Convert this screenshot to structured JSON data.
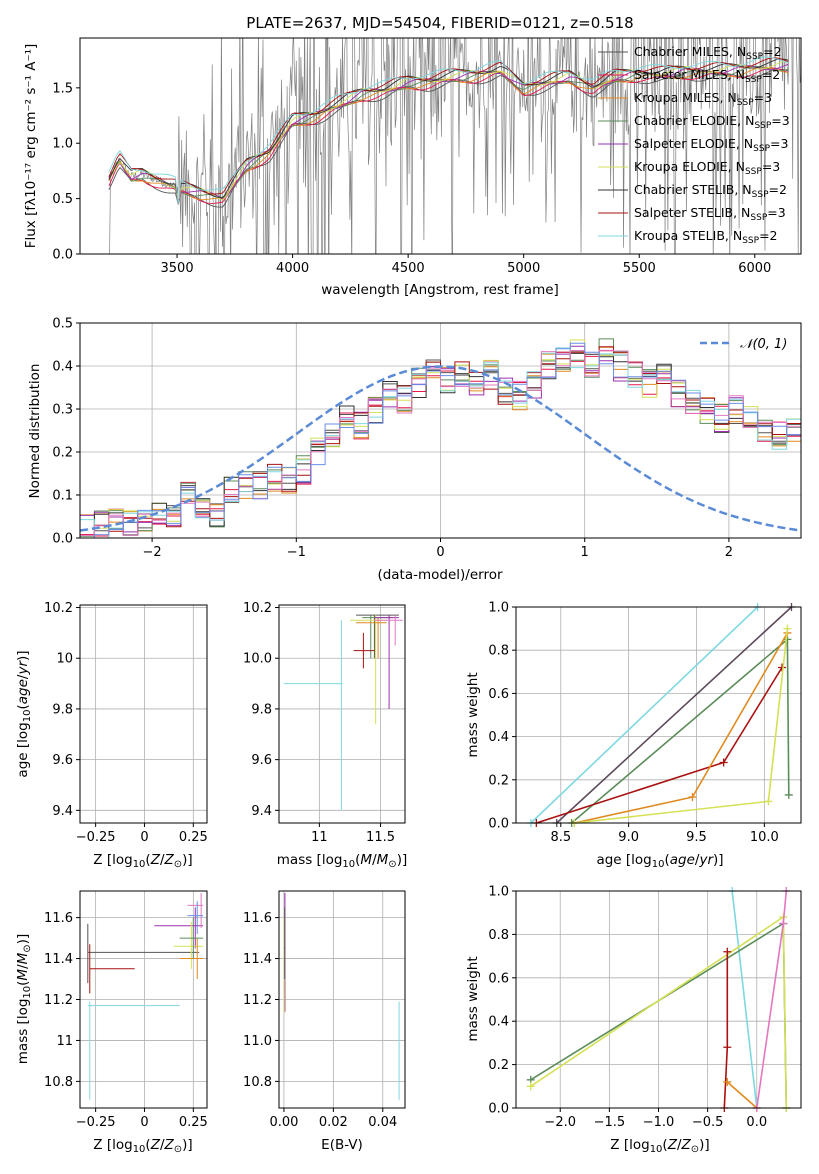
{
  "chart_data": [
    {
      "id": "spectrum",
      "type": "line",
      "title": "PLATE=2637, MJD=54504, FIBERID=0121, z=0.518",
      "xlabel": "wavelength [Angstrom, rest frame]",
      "ylabel": "Flux [f$_\\lambda$ 10$^{-17}$ erg cm$^{-2}$ s$^{-1}$ A$^{-1}$]",
      "ylabel_display": "Flux [fλ10⁻¹⁷ erg cm⁻² s⁻¹ A⁻¹]",
      "xlim": [
        3080,
        6200
      ],
      "ylim": [
        0,
        1.95
      ],
      "xticks": [
        3500,
        4000,
        4500,
        5000,
        5500,
        6000
      ],
      "yticks": [
        0.0,
        0.5,
        1.0,
        1.5
      ],
      "grid": false,
      "legend_position": "upper right",
      "legend": [
        {
          "label": "Chabrier MILES, N$_{SSP}$=2",
          "display": "Chabrier MILES, N",
          "sub": "SSP",
          "tail": "=2",
          "color": "#555555"
        },
        {
          "label": "Salpeter MILES, N$_{SSP}$=2",
          "display": "Salpeter MILES, N",
          "sub": "SSP",
          "tail": "=2",
          "color": "#e6194b"
        },
        {
          "label": "Kroupa MILES, N$_{SSP}$=3",
          "display": "Kroupa MILES, N",
          "sub": "SSP",
          "tail": "=3",
          "color": "#e08a1e"
        },
        {
          "label": "Chabrier ELODIE, N$_{SSP}$=3",
          "display": "Chabrier ELODIE, N",
          "sub": "SSP",
          "tail": "=3",
          "color": "#5b8c5a"
        },
        {
          "label": "Salpeter ELODIE, N$_{SSP}$=3",
          "display": "Salpeter ELODIE, N",
          "sub": "SSP",
          "tail": "=3",
          "color": "#9b30b0"
        },
        {
          "label": "Kroupa ELODIE, N$_{SSP}$=3",
          "display": "Kroupa ELODIE, N",
          "sub": "SSP",
          "tail": "=3",
          "color": "#d4e157"
        },
        {
          "label": "Chabrier STELIB, N$_{SSP}$=2",
          "display": "Chabrier STELIB, N",
          "sub": "SSP",
          "tail": "=2",
          "color": "#333333"
        },
        {
          "label": "Salpeter STELIB, N$_{SSP}$=3",
          "display": "Salpeter STELIB, N",
          "sub": "SSP",
          "tail": "=3",
          "color": "#aa1111"
        },
        {
          "label": "Kroupa STELIB, N$_{SSP}$=2",
          "display": "Kroupa STELIB, N",
          "sub": "SSP",
          "tail": "=2",
          "color": "#7fd7e0"
        }
      ],
      "data_color": "#808080",
      "model_continuum": {
        "x": [
          3200,
          3250,
          3300,
          3350,
          3400,
          3500,
          3600,
          3700,
          3800,
          3900,
          4000,
          4100,
          4200,
          4300,
          4400,
          4500,
          4600,
          4700,
          4800,
          4900,
          5000,
          5100,
          5200,
          5300,
          5400,
          5500,
          5600,
          5700,
          5800,
          5900,
          6000,
          6100
        ],
        "y": [
          0.65,
          0.85,
          0.7,
          0.72,
          0.68,
          0.6,
          0.55,
          0.5,
          0.8,
          0.92,
          1.2,
          1.25,
          1.35,
          1.45,
          1.48,
          1.55,
          1.56,
          1.6,
          1.62,
          1.66,
          1.5,
          1.55,
          1.6,
          1.5,
          1.6,
          1.63,
          1.62,
          1.65,
          1.65,
          1.66,
          1.68,
          1.7
        ]
      }
    },
    {
      "id": "residuals",
      "type": "histogram",
      "xlabel": "(data-model)/error",
      "ylabel": "Normed distribution",
      "xlim": [
        -2.5,
        2.5
      ],
      "ylim": [
        0,
        0.5
      ],
      "xticks": [
        -2,
        -1,
        0,
        1,
        2
      ],
      "yticks": [
        0.0,
        0.1,
        0.2,
        0.3,
        0.4,
        0.5
      ],
      "grid": true,
      "legend_position": "upper right",
      "reference_curve": {
        "label": "$\\mathcal{N}(0,1)$",
        "display": "𝒩(0, 1)",
        "color": "#5b8bd6",
        "style": "dashed"
      },
      "bin_width": 0.1,
      "bin_start": -2.5,
      "base_values": [
        0.02,
        0.03,
        0.05,
        0.04,
        0.04,
        0.05,
        0.06,
        0.1,
        0.07,
        0.06,
        0.11,
        0.12,
        0.12,
        0.14,
        0.13,
        0.16,
        0.2,
        0.24,
        0.28,
        0.26,
        0.3,
        0.33,
        0.32,
        0.36,
        0.4,
        0.37,
        0.38,
        0.36,
        0.38,
        0.34,
        0.33,
        0.36,
        0.4,
        0.42,
        0.43,
        0.4,
        0.44,
        0.4,
        0.38,
        0.36,
        0.38,
        0.34,
        0.31,
        0.3,
        0.28,
        0.3,
        0.29,
        0.26,
        0.24,
        0.25
      ],
      "series_colors": [
        "#555555",
        "#e6194b",
        "#e08a1e",
        "#5b8c5a",
        "#9b30b0",
        "#d4e157",
        "#333333",
        "#aa1111",
        "#7fd7e0",
        "#e377c2",
        "#6b8ee6"
      ]
    },
    {
      "id": "age_vs_Z",
      "type": "errorbar",
      "xlabel": "Z [log$_{10}$(Z/Z$_\\odot$)]",
      "ylabel": "age  [log$_{10}$(age/yr)]",
      "xlim": [
        -0.33,
        0.32
      ],
      "ylim": [
        9.35,
        10.21
      ],
      "xticks": [
        -0.25,
        0.0,
        0.25
      ],
      "yticks": [
        9.4,
        9.6,
        9.8,
        10.0,
        10.2
      ],
      "grid": true
    },
    {
      "id": "age_vs_mass",
      "type": "errorbar",
      "xlabel": "mass [log$_{10}$(M/M$_\\odot$)]",
      "xlim": [
        10.67,
        11.7
      ],
      "ylim": [
        9.35,
        10.21
      ],
      "xticks": [
        11.0,
        11.5
      ],
      "yticks": [
        9.4,
        9.6,
        9.8,
        10.0,
        10.2
      ],
      "grid": true
    },
    {
      "id": "massweight_vs_age",
      "type": "line",
      "xlabel": "age  [log$_{10}$(age/yr)]",
      "ylabel": "mass weight",
      "xlim": [
        8.17,
        10.27
      ],
      "ylim": [
        0,
        1.0
      ],
      "xticks": [
        8.5,
        9.0,
        9.5,
        10.0
      ],
      "yticks": [
        0.0,
        0.2,
        0.4,
        0.6,
        0.8,
        1.0
      ],
      "grid": true,
      "series": [
        {
          "color": "#7fd7e0",
          "x": [
            8.28,
            9.95
          ],
          "y": [
            0.0,
            1.0
          ]
        },
        {
          "color": "#5a4a5a",
          "x": [
            8.47,
            10.2
          ],
          "y": [
            0.0,
            1.0
          ]
        },
        {
          "color": "#5b8c5a",
          "x": [
            8.58,
            10.17,
            10.18
          ],
          "y": [
            0.0,
            0.85,
            0.13
          ]
        },
        {
          "color": "#aa1111",
          "x": [
            8.32,
            9.7,
            10.13
          ],
          "y": [
            0.0,
            0.28,
            0.72
          ]
        },
        {
          "color": "#e08a1e",
          "x": [
            8.6,
            9.47,
            10.17
          ],
          "y": [
            0.0,
            0.12,
            0.88
          ]
        },
        {
          "color": "#d4e157",
          "x": [
            8.6,
            10.03,
            10.17
          ],
          "y": [
            0.0,
            0.1,
            0.9
          ]
        }
      ]
    },
    {
      "id": "mass_vs_Z",
      "type": "errorbar",
      "xlabel": "Z [log$_{10}$(Z/Z$_\\odot$)]",
      "ylabel": "mass [log$_{10}$(M/M$_\\odot$)]",
      "xlim": [
        -0.33,
        0.32
      ],
      "ylim": [
        10.67,
        11.73
      ],
      "xticks": [
        -0.25,
        0.0,
        0.25
      ],
      "yticks": [
        10.8,
        11.0,
        11.2,
        11.4,
        11.6
      ],
      "grid": true
    },
    {
      "id": "mass_vs_ebv",
      "type": "errorbar",
      "xlabel": "E(B-V)",
      "xlim": [
        -0.002,
        0.049
      ],
      "ylim": [
        10.67,
        11.73
      ],
      "xticks": [
        0.0,
        0.02,
        0.04
      ],
      "yticks": [
        10.8,
        11.0,
        11.2,
        11.4,
        11.6
      ],
      "grid": true
    },
    {
      "id": "massweight_vs_Z",
      "type": "line",
      "xlabel": "Z [log$_{10}$(Z/Z$_\\odot$)]",
      "ylabel": "mass weight",
      "xlim": [
        -2.45,
        0.45
      ],
      "ylim": [
        0,
        1.0
      ],
      "xticks": [
        -2.0,
        -1.5,
        -1.0,
        -0.5,
        0.0
      ],
      "yticks": [
        0.0,
        0.2,
        0.4,
        0.6,
        0.8,
        1.0
      ],
      "grid": true,
      "series": [
        {
          "color": "#7fd7e0",
          "x": [
            -0.25,
            0.0
          ],
          "y": [
            1.0,
            0.0
          ]
        },
        {
          "color": "#5b8c5a",
          "x": [
            -2.3,
            0.27,
            0.3
          ],
          "y": [
            0.13,
            0.85,
            0.0
          ]
        },
        {
          "color": "#d4e157",
          "x": [
            -2.3,
            0.27,
            0.3
          ],
          "y": [
            0.1,
            0.88,
            0.0
          ]
        },
        {
          "color": "#aa1111",
          "x": [
            -0.33,
            -0.3,
            -0.3
          ],
          "y": [
            0.0,
            0.28,
            0.72
          ]
        },
        {
          "color": "#e08a1e",
          "x": [
            -0.3,
            0.0
          ],
          "y": [
            0.12,
            0.0
          ]
        },
        {
          "color": "#e377c2",
          "x": [
            0.0,
            0.27,
            0.3
          ],
          "y": [
            0.0,
            0.85,
            1.0
          ]
        }
      ]
    }
  ]
}
